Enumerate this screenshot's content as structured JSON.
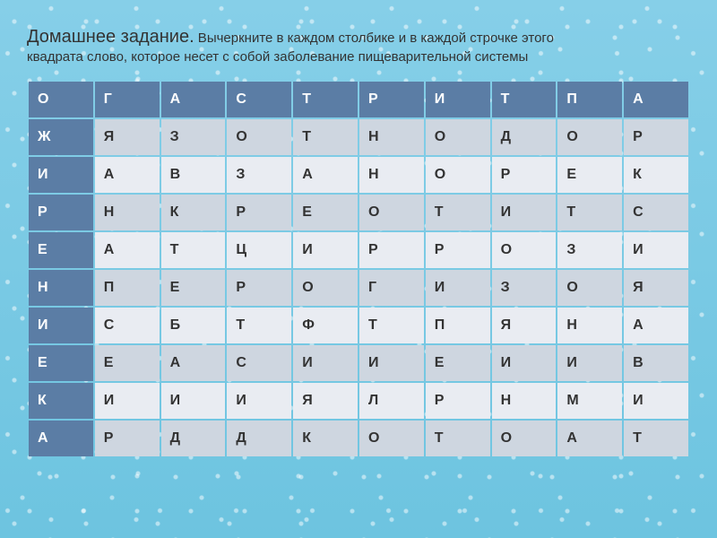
{
  "title": {
    "lead": "Домашнее задание.",
    "rest_line1": " Вычеркните в каждом столбике и в каждой строчке этого",
    "rest_line2": "квадрата слово, которое несет с собой заболевание пищеварительной системы"
  },
  "grid": {
    "rows": [
      [
        "О",
        "Г",
        "А",
        "С",
        "Т",
        "Р",
        "И",
        "Т",
        "П",
        "А"
      ],
      [
        "Ж",
        "Я",
        "З",
        "О",
        "Т",
        "Н",
        "О",
        "Д",
        "О",
        "Р"
      ],
      [
        "И",
        "А",
        "В",
        "З",
        "А",
        "Н",
        "О",
        "Р",
        "Е",
        "К"
      ],
      [
        "Р",
        "Н",
        "К",
        "Р",
        "Е",
        "О",
        "Т",
        "И",
        "Т",
        "С"
      ],
      [
        "Е",
        "А",
        "Т",
        "Ц",
        "И",
        "Р",
        "Р",
        "О",
        "З",
        "И"
      ],
      [
        "Н",
        "П",
        "Е",
        "Р",
        "О",
        "Г",
        "И",
        "З",
        "О",
        "Я"
      ],
      [
        "И",
        "С",
        "Б",
        "Т",
        "Ф",
        "Т",
        "П",
        "Я",
        "Н",
        "А"
      ],
      [
        "Е",
        "Е",
        "А",
        "С",
        "И",
        "И",
        "Е",
        "И",
        "И",
        "В"
      ],
      [
        "К",
        "И",
        "И",
        "И",
        "Я",
        "Л",
        "Р",
        "Н",
        "М",
        "И"
      ],
      [
        "А",
        "Р",
        "Д",
        "Д",
        "К",
        "О",
        "Т",
        "О",
        "А",
        "Т"
      ]
    ],
    "header_bg": "#5b7da5",
    "header_fg": "#ffffff",
    "row_odd_bg": "#ced6e0",
    "row_even_bg": "#e9ecf2",
    "cell_fg": "#333333",
    "font_size": 16,
    "font_weight": "bold"
  },
  "background": {
    "gradient_top": "#86cfe8",
    "gradient_bottom": "#6dc4e0",
    "bubble_color": "rgba(255,255,255,0.5)"
  }
}
